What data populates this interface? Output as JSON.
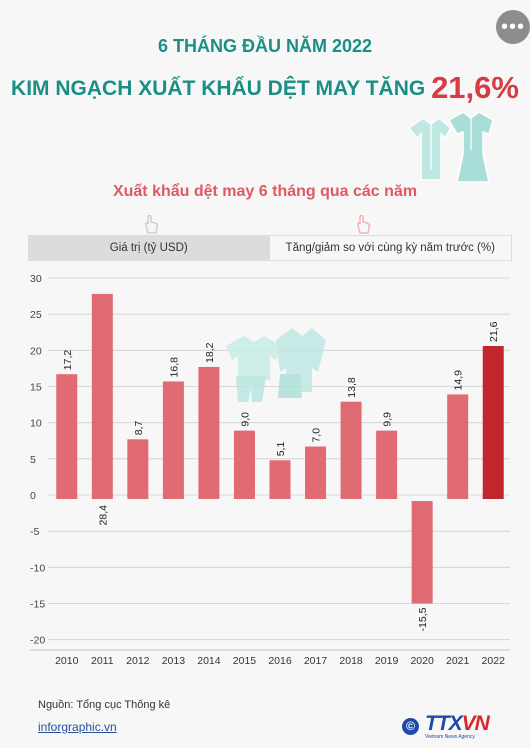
{
  "header": {
    "subtitle": "6 THÁNG ĐẦU NĂM 2022",
    "title_text": "KIM NGẠCH XUẤT KHẨU DỆT MAY TĂNG",
    "title_highlight": "21,6%"
  },
  "tabs": [
    {
      "label": "Giá trị (tỷ USD)",
      "active": true
    },
    {
      "label": "Tăng/giảm so với cùng kỳ năm trước (%)",
      "active": false
    }
  ],
  "footer": {
    "source": "Nguồn: Tổng cục Thống kê",
    "link": "inforgraphic.vn",
    "logo_main_a": "TTX",
    "logo_main_b": "VN",
    "logo_small": "Vietnam News Agency",
    "logo_mark": "©"
  },
  "icons": {
    "more": "more-options-icon",
    "hand": "pointer-hand-icon",
    "clothes": "clothing-icon"
  },
  "colors": {
    "title_teal": "#1a8f86",
    "highlight_red": "#d43d44",
    "bar": "#e06b72",
    "bar_highlight": "#c0262e",
    "grid": "#cfcfcf"
  },
  "chart_data": {
    "type": "bar",
    "title": "Xuất khẩu dệt may 6 tháng qua các năm",
    "categories": [
      "2010",
      "2011",
      "2012",
      "2013",
      "2014",
      "2015",
      "2016",
      "2017",
      "2018",
      "2019",
      "2020",
      "2021",
      "2022"
    ],
    "values": [
      17.2,
      28.4,
      8.7,
      16.8,
      18.2,
      9.0,
      5.1,
      7.0,
      13.8,
      9.9,
      -15.5,
      14.9,
      21.6
    ],
    "value_labels": [
      "17,2",
      "28,4",
      "8,7",
      "16,8",
      "18,2",
      "9,0",
      "5,1",
      "7,0",
      "13,8",
      "9,9",
      "-15,5",
      "14,9",
      "21,6"
    ],
    "bar_heights": [
      16.7,
      27.8,
      7.7,
      15.7,
      17.7,
      8.9,
      4.8,
      6.7,
      12.9,
      8.9,
      -15.0,
      13.9,
      20.6
    ],
    "yticks": [
      30,
      25,
      20,
      15,
      10,
      5,
      0,
      -5,
      -10,
      -15,
      -20
    ],
    "ylim": [
      -21,
      30
    ],
    "highlight_index": 12,
    "grid": true,
    "xlabel": "",
    "ylabel": ""
  }
}
